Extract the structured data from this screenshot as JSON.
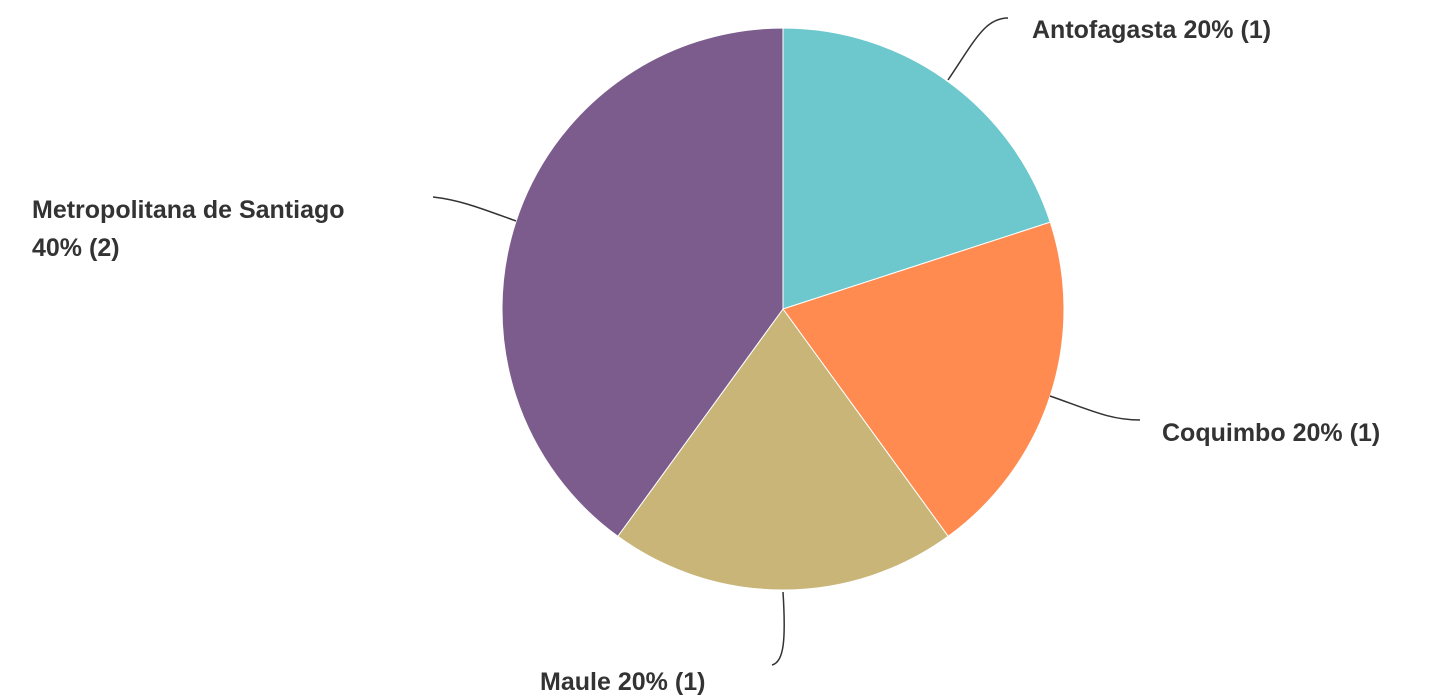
{
  "chart_data": {
    "type": "pie",
    "categories": [
      "Antofagasta",
      "Coquimbo",
      "Maule",
      "Metropolitana de Santiago"
    ],
    "values": [
      20,
      20,
      20,
      40
    ],
    "value_labels": [
      "20%",
      "20%",
      "20%",
      "40%"
    ],
    "counts": [
      1,
      1,
      1,
      2
    ],
    "count_labels": [
      "(1)",
      "(1)",
      "(1)",
      "(2)"
    ],
    "colors": [
      "#6cc8cd",
      "#ff8b50",
      "#c8b577",
      "#7c5c8d"
    ]
  }
}
